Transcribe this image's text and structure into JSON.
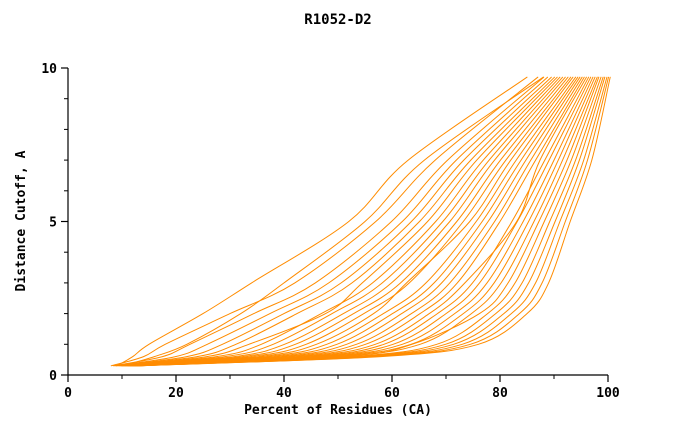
{
  "chart_data": {
    "type": "line",
    "title": "R1052-D2",
    "xlabel": "Percent of Residues (CA)",
    "ylabel": "Distance Cutoff, A",
    "xlim": [
      0,
      100
    ],
    "ylim": [
      0,
      10
    ],
    "x_major_ticks": [
      0,
      20,
      40,
      60,
      80,
      100
    ],
    "x_minor_ticks": [
      10,
      30,
      50,
      70,
      90
    ],
    "y_major_ticks": [
      0,
      5,
      10
    ],
    "y_minor_ticks": [
      1,
      2,
      3,
      4,
      6,
      7,
      8,
      9
    ],
    "grid": false,
    "legend": "none",
    "line_color": "#ff8c00",
    "series_note": "Each series lists Percent-of-Residues (x) values sampled at the shared Distance-Cutoff levels in y_grid; ~40 overlapping model curves estimated from plot",
    "y_grid": [
      0.3,
      0.6,
      1,
      2,
      3,
      5,
      7,
      9.7
    ],
    "series": [
      {
        "x": [
          9,
          12,
          15,
          25,
          34,
          52,
          63,
          85
        ]
      },
      {
        "x": [
          8,
          14,
          18,
          30,
          42,
          57,
          68,
          87
        ]
      },
      {
        "x": [
          8.4,
          17.5,
          22.6,
          34.4,
          45.8,
          59.9,
          70.3,
          88.1
        ]
      },
      {
        "x": [
          8.7,
          19.9,
          25.8,
          37.4,
          48.3,
          61.9,
          71.9,
          88.8
        ]
      },
      {
        "x": [
          8.9,
          22,
          28.6,
          40,
          50.6,
          63.6,
          73.3,
          89.5
        ]
      },
      {
        "x": [
          9.1,
          23.9,
          31.1,
          42.4,
          52.6,
          65.1,
          74.6,
          90.1
        ]
      },
      {
        "x": [
          9.3,
          25.7,
          33.5,
          47.7,
          54.5,
          66.6,
          75.7,
          90.6
        ]
      },
      {
        "x": [
          9.5,
          27.5,
          35.8,
          46.9,
          56.4,
          68.1,
          76.9,
          91.1
        ]
      },
      {
        "x": [
          9.7,
          29.1,
          38,
          48.9,
          58.2,
          69.4,
          78,
          91.6
        ]
      },
      {
        "x": [
          9.9,
          30.8,
          40.1,
          51,
          59.9,
          70.7,
          79,
          92.1
        ]
      },
      {
        "x": [
          10.1,
          32.3,
          42.1,
          52.9,
          61.6,
          72,
          80.1,
          92.6
        ]
      },
      {
        "x": [
          10.3,
          33.8,
          44.1,
          54.8,
          63.2,
          73.2,
          81.1,
          93.1
        ]
      },
      {
        "x": [
          10.4,
          35.3,
          46,
          56.6,
          62.7,
          74.4,
          82,
          93.5
        ]
      },
      {
        "x": [
          10.6,
          36.7,
          47.9,
          58.4,
          66.3,
          75.6,
          83,
          94
        ]
      },
      {
        "x": [
          10.7,
          38.1,
          49.8,
          60.1,
          67.8,
          76.7,
          83.9,
          94.4
        ]
      },
      {
        "x": [
          10.9,
          39.5,
          51.6,
          61.8,
          69.2,
          77.8,
          84.8,
          94.8
        ]
      },
      {
        "x": [
          11.1,
          40.8,
          53.4,
          63.6,
          70.7,
          79,
          85.7,
          95.2
        ]
      },
      {
        "x": [
          11.2,
          42.2,
          55.1,
          65.2,
          72.1,
          80,
          86.6,
          95.6
        ]
      },
      {
        "x": [
          11.4,
          43.5,
          56.9,
          66.9,
          73.5,
          83.1,
          87.4,
          96
        ]
      },
      {
        "x": [
          11.5,
          44.8,
          58.5,
          68.4,
          74.9,
          82.2,
          88.3,
          96.4
        ]
      },
      {
        "x": [
          11.6,
          46,
          60.2,
          70,
          76.2,
          83.2,
          89.1,
          96.8
        ]
      },
      {
        "x": [
          11.8,
          47.3,
          61.9,
          71.6,
          77.6,
          84.3,
          90,
          97.2
        ]
      },
      {
        "x": [
          11.9,
          48.5,
          63.5,
          73.2,
          78.9,
          85.3,
          90.8,
          97.6
        ]
      },
      {
        "x": [
          12.1,
          49.8,
          65.2,
          74.7,
          80.2,
          86.3,
          91.6,
          98
        ]
      },
      {
        "x": [
          12.2,
          51,
          63.7,
          76.2,
          81.5,
          87.2,
          92.4,
          98.3
        ]
      },
      {
        "x": [
          12.3,
          52.2,
          68.3,
          77.7,
          82.8,
          88.2,
          93.2,
          98.7
        ]
      },
      {
        "x": [
          12.5,
          53.4,
          69.9,
          79.2,
          84.1,
          89.2,
          94,
          99.1
        ]
      },
      {
        "x": [
          12.6,
          54.5,
          71.4,
          80.7,
          85.3,
          90.2,
          94.7,
          99.4
        ]
      },
      {
        "x": [
          12.7,
          55.7,
          73,
          82.1,
          86.6,
          91.1,
          95.5,
          99.8
        ]
      },
      {
        "x": [
          12.9,
          56.9,
          74.5,
          83.6,
          87.8,
          92.1,
          96.2,
          100.1
        ]
      },
      {
        "x": [
          13,
          58,
          76,
          85,
          89,
          93,
          97,
          100.4
        ]
      },
      {
        "x": [
          10,
          16,
          22,
          32,
          40,
          55,
          66,
          88
        ]
      }
    ]
  }
}
